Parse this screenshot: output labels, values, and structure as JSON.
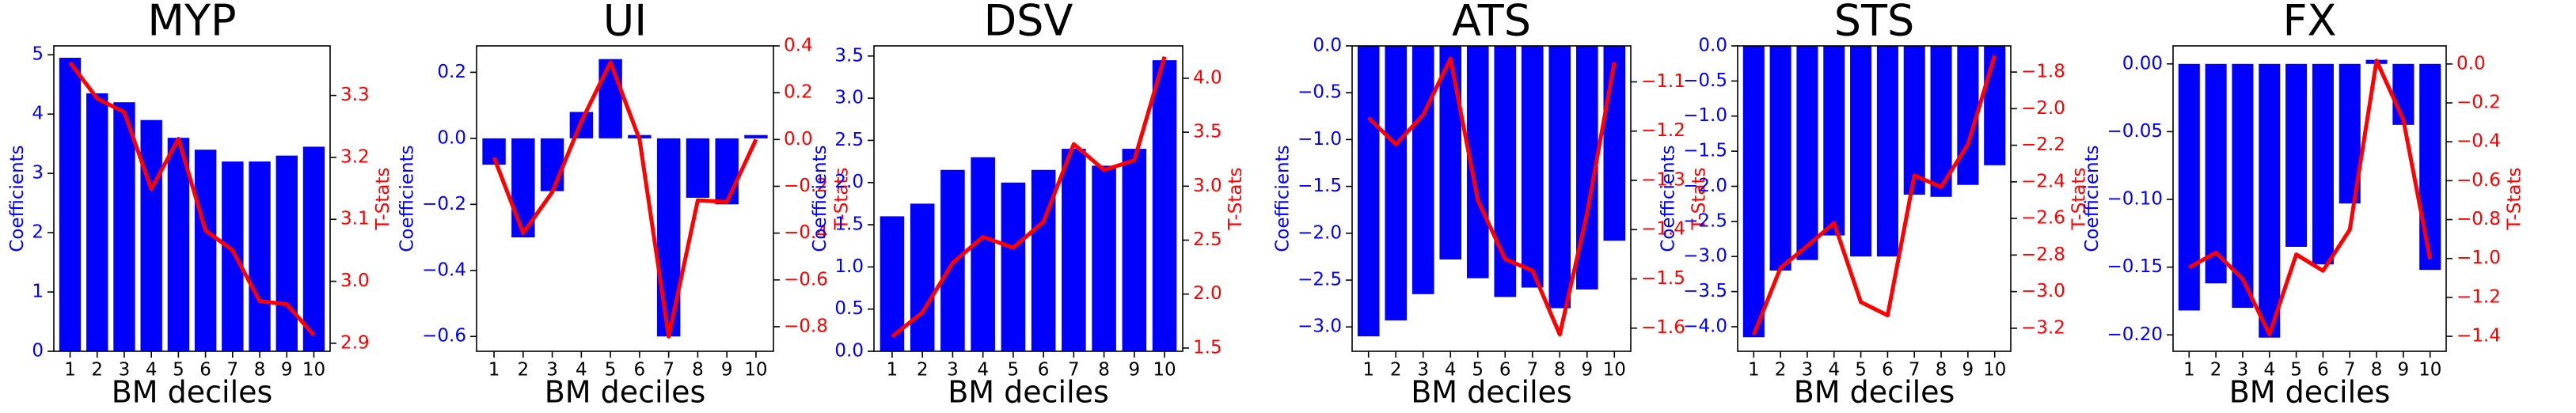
{
  "chart_data": [
    {
      "type": "bar",
      "title": "MYP",
      "xlabel": "BM deciles",
      "ylabel": "Coefficients",
      "y2label": "T-Stats",
      "categories": [
        "1",
        "2",
        "3",
        "4",
        "5",
        "6",
        "7",
        "8",
        "9",
        "10"
      ],
      "series": [
        {
          "type": "bar",
          "color": "#0000ff",
          "values": [
            4.95,
            4.35,
            4.2,
            3.9,
            3.6,
            3.4,
            3.2,
            3.2,
            3.3,
            3.45
          ]
        },
        {
          "type": "line",
          "axis": "y2",
          "color": "#ff0000",
          "values": [
            3.353,
            3.295,
            3.273,
            3.149,
            3.23,
            3.082,
            3.05,
            2.968,
            2.963,
            2.913
          ]
        }
      ],
      "ylim": [
        0,
        5.15
      ],
      "yticks": [
        0,
        1,
        2,
        3,
        4,
        5
      ],
      "y2lim": [
        2.887,
        3.38
      ],
      "y2ticks": [
        2.9,
        {
          "value": 3,
          "label": "3.0"
        },
        3.1,
        3.2,
        3.3
      ]
    },
    {
      "type": "bar",
      "title": "UI",
      "xlabel": "BM deciles",
      "ylabel": "Coefficients",
      "y2label": "T-Stats",
      "categories": [
        "1",
        "2",
        "3",
        "4",
        "5",
        "6",
        "7",
        "8",
        "9",
        "10"
      ],
      "series": [
        {
          "type": "bar",
          "color": "#0000ff",
          "values": [
            -0.08,
            -0.3,
            -0.16,
            0.08,
            0.24,
            0.01,
            -0.6,
            -0.18,
            -0.2,
            0.01
          ]
        },
        {
          "type": "line",
          "axis": "y2",
          "color": "#ff0000",
          "values": [
            -0.077,
            -0.4,
            -0.225,
            0.077,
            0.33,
            0.0,
            -0.842,
            -0.26,
            -0.267,
            0.0
          ]
        }
      ],
      "ylim": [
        -0.645,
        0.28
      ],
      "yticks": [
        {
          "value": -0.6,
          "label": "−0.6"
        },
        {
          "value": -0.4,
          "label": "−0.4"
        },
        {
          "value": -0.2,
          "label": "−0.2"
        },
        {
          "value": 0,
          "label": "0.0"
        },
        0.2
      ],
      "y2lim": [
        -0.905,
        0.4
      ],
      "y2ticks": [
        {
          "value": -0.8,
          "label": "−0.8"
        },
        {
          "value": -0.6,
          "label": "−0.6"
        },
        {
          "value": -0.4,
          "label": "−0.4"
        },
        {
          "value": -0.2,
          "label": "−0.2"
        },
        {
          "value": 0,
          "label": "0.0"
        },
        0.2,
        0.4
      ]
    },
    {
      "type": "bar",
      "title": "DSV",
      "xlabel": "BM deciles",
      "ylabel": "Coefficients",
      "y2label": "T-Stats",
      "categories": [
        "1",
        "2",
        "3",
        "4",
        "5",
        "6",
        "7",
        "8",
        "9",
        "10"
      ],
      "series": [
        {
          "type": "bar",
          "color": "#0000ff",
          "values": [
            1.6,
            1.75,
            2.15,
            2.3,
            2.0,
            2.15,
            2.4,
            2.2,
            2.4,
            3.45
          ]
        },
        {
          "type": "line",
          "axis": "y2",
          "color": "#ff0000",
          "values": [
            1.607,
            1.83,
            2.29,
            2.53,
            2.43,
            2.67,
            3.39,
            3.15,
            3.24,
            4.2
          ]
        }
      ],
      "ylim": [
        0,
        3.62
      ],
      "yticks": [
        {
          "value": 0,
          "label": "0.0"
        },
        0.5,
        {
          "value": 1,
          "label": "1.0"
        },
        1.5,
        {
          "value": 2,
          "label": "2.0"
        },
        2.5,
        {
          "value": 3,
          "label": "3.0"
        },
        3.5
      ],
      "y2lim": [
        1.47,
        4.3
      ],
      "y2ticks": [
        1.5,
        {
          "value": 2,
          "label": "2.0"
        },
        2.5,
        {
          "value": 3,
          "label": "3.0"
        },
        3.5,
        {
          "value": 4,
          "label": "4.0"
        }
      ]
    },
    {
      "type": "bar",
      "title": "ATS",
      "xlabel": "BM deciles",
      "ylabel": "Coefficients",
      "y2label": "T-Stats",
      "categories": [
        "1",
        "2",
        "3",
        "4",
        "5",
        "6",
        "7",
        "8",
        "9",
        "10"
      ],
      "series": [
        {
          "type": "bar",
          "color": "#0000ff",
          "values": [
            -3.1,
            -2.93,
            -2.65,
            -2.28,
            -2.48,
            -2.68,
            -2.58,
            -2.8,
            -2.6,
            -2.08
          ]
        },
        {
          "type": "line",
          "axis": "y2",
          "color": "#ff0000",
          "values": [
            -1.173,
            -1.227,
            -1.167,
            -1.053,
            -1.34,
            -1.46,
            -1.483,
            -1.613,
            -1.367,
            -1.06
          ]
        }
      ],
      "ylim": [
        -3.26,
        0
      ],
      "yticks": [
        {
          "value": -3,
          "label": "−3.0"
        },
        {
          "value": -2.5,
          "label": "−2.5"
        },
        {
          "value": -2,
          "label": "−2.0"
        },
        {
          "value": -1.5,
          "label": "−1.5"
        },
        {
          "value": -1,
          "label": "−1.0"
        },
        {
          "value": -0.5,
          "label": "−0.5"
        },
        {
          "value": 0,
          "label": "0.0"
        }
      ],
      "y2lim": [
        -1.647,
        -1.027
      ],
      "y2ticks": [
        {
          "value": -1.6,
          "label": "−1.6"
        },
        {
          "value": -1.5,
          "label": "−1.5"
        },
        {
          "value": -1.4,
          "label": "−1.4"
        },
        {
          "value": -1.3,
          "label": "−1.3"
        },
        {
          "value": -1.2,
          "label": "−1.2"
        },
        {
          "value": -1.1,
          "label": "−1.1"
        }
      ]
    },
    {
      "type": "bar",
      "title": "STS",
      "xlabel": "BM deciles",
      "ylabel": "Coefficients",
      "y2label": "T-Stats",
      "categories": [
        "1",
        "2",
        "3",
        "4",
        "5",
        "6",
        "7",
        "8",
        "9",
        "10"
      ],
      "series": [
        {
          "type": "bar",
          "color": "#0000ff",
          "values": [
            -4.15,
            -3.2,
            -3.05,
            -2.7,
            -3.0,
            -3.0,
            -2.12,
            -2.15,
            -1.98,
            -1.7
          ]
        },
        {
          "type": "line",
          "axis": "y2",
          "color": "#ff0000",
          "values": [
            -3.236,
            -2.87,
            -2.75,
            -2.625,
            -3.057,
            -3.13,
            -2.365,
            -2.428,
            -2.195,
            -1.71
          ]
        }
      ],
      "ylim": [
        -4.35,
        0
      ],
      "yticks": [
        {
          "value": -4,
          "label": "−4.0"
        },
        {
          "value": -3.5,
          "label": "−3.5"
        },
        {
          "value": -3,
          "label": "−3.0"
        },
        {
          "value": -2.5,
          "label": "−2.5"
        },
        {
          "value": -2,
          "label": "−2.0"
        },
        {
          "value": -1.5,
          "label": "−1.5"
        },
        {
          "value": -1,
          "label": "−1.0"
        },
        {
          "value": -0.5,
          "label": "−0.5"
        },
        {
          "value": 0,
          "label": "0.0"
        }
      ],
      "y2lim": [
        -3.326,
        -1.657
      ],
      "y2ticks": [
        {
          "value": -3.2,
          "label": "−3.2"
        },
        {
          "value": -3,
          "label": "−3.0"
        },
        {
          "value": -2.8,
          "label": "−2.8"
        },
        {
          "value": -2.6,
          "label": "−2.6"
        },
        {
          "value": -2.4,
          "label": "−2.4"
        },
        {
          "value": -2.2,
          "label": "−2.2"
        },
        {
          "value": -2,
          "label": "−2.0"
        },
        {
          "value": -1.8,
          "label": "−1.8"
        }
      ]
    },
    {
      "type": "bar",
      "title": "FX",
      "xlabel": "BM deciles",
      "ylabel": "Coefficients",
      "y2label": "T-Stats",
      "categories": [
        "1",
        "2",
        "3",
        "4",
        "5",
        "6",
        "7",
        "8",
        "9",
        "10"
      ],
      "series": [
        {
          "type": "bar",
          "color": "#0000ff",
          "values": [
            -0.182,
            -0.162,
            -0.18,
            -0.202,
            -0.135,
            -0.148,
            -0.103,
            0.003,
            -0.045,
            -0.152
          ]
        },
        {
          "type": "line",
          "axis": "y2",
          "color": "#ff0000",
          "values": [
            -1.046,
            -0.97,
            -1.105,
            -1.39,
            -0.979,
            -1.063,
            -0.852,
            0.017,
            -0.287,
            -1.004
          ]
        }
      ],
      "ylim": [
        -0.2121,
        0.0133
      ],
      "yticks": [
        {
          "value": -0.2,
          "label": "−0.20"
        },
        {
          "value": -0.15,
          "label": "−0.15"
        },
        {
          "value": -0.1,
          "label": "−0.10"
        },
        {
          "value": -0.05,
          "label": "−0.05"
        },
        {
          "value": 0,
          "label": "0.00"
        }
      ],
      "y2lim": [
        -1.477,
        0.093
      ],
      "y2ticks": [
        {
          "value": -1.4,
          "label": "−1.4"
        },
        {
          "value": -1.2,
          "label": "−1.2"
        },
        {
          "value": -1,
          "label": "−1.0"
        },
        {
          "value": -0.8,
          "label": "−0.8"
        },
        {
          "value": -0.6,
          "label": "−0.6"
        },
        {
          "value": -0.4,
          "label": "−0.4"
        },
        {
          "value": -0.2,
          "label": "−0.2"
        },
        {
          "value": 0,
          "label": "0.0"
        }
      ]
    }
  ]
}
